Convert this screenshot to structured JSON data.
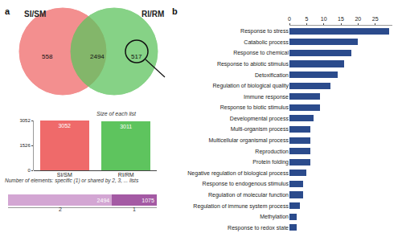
{
  "chart_data": [
    {
      "type": "venn",
      "panel_label": "a",
      "series": [
        {
          "name": "SI/SM",
          "color": "#ef6a6a",
          "values": [
            558
          ]
        },
        {
          "name": "RI/RM",
          "color": "#5ec45e",
          "values": [
            517
          ]
        }
      ],
      "intersection": 2494
    },
    {
      "type": "bar",
      "title": "Size of each list",
      "categories": [
        "SI/SM",
        "RI/RM"
      ],
      "values": [
        3052,
        3011
      ],
      "colors": [
        "#ef6a6a",
        "#5ec45e"
      ],
      "ylim": [
        0,
        3052
      ],
      "yticks": [
        0,
        1526,
        3052
      ],
      "data_labels": true,
      "grid": false
    },
    {
      "type": "bar",
      "title": "Number of elements: specific (1) or shared by 2, 3, ... lists",
      "orientation": "horizontal",
      "stacked": true,
      "categories": [
        null
      ],
      "series": [
        {
          "name": "2",
          "color": "#d3a6d3",
          "values": [
            2494
          ]
        },
        {
          "name": "1",
          "color": "#a45aa4",
          "values": [
            1075
          ]
        }
      ],
      "xlim": [
        0,
        3569
      ],
      "data_labels": true,
      "tick_labels": false
    },
    {
      "type": "bar",
      "panel_label": "b",
      "orientation": "horizontal",
      "categories": [
        "Response to stress",
        "Catabolic process",
        "Response to chemical",
        "Response to abiotic stimulus",
        "Detoxification",
        "Regulation of biological quality",
        "Immune response",
        "Response to biotic stimulus",
        "Developmental process",
        "Multi-organism process",
        "Multicellular organismal process",
        "Reproduction",
        "Protein folding",
        "Negative regulation of biological process",
        "Response to endogenous stimulus",
        "Regulation of molecular function",
        "Regulation of immune system process",
        "Methylation",
        "Response to redox state"
      ],
      "values": [
        29,
        20,
        18,
        16,
        14,
        12,
        9,
        9,
        7,
        6,
        6,
        6,
        6,
        5,
        4,
        4,
        3,
        2,
        2
      ],
      "color": "#2b4b8c",
      "xlim": [
        0,
        30
      ],
      "xticks": [
        0,
        5,
        10,
        15,
        20,
        25
      ],
      "grid": false
    }
  ]
}
